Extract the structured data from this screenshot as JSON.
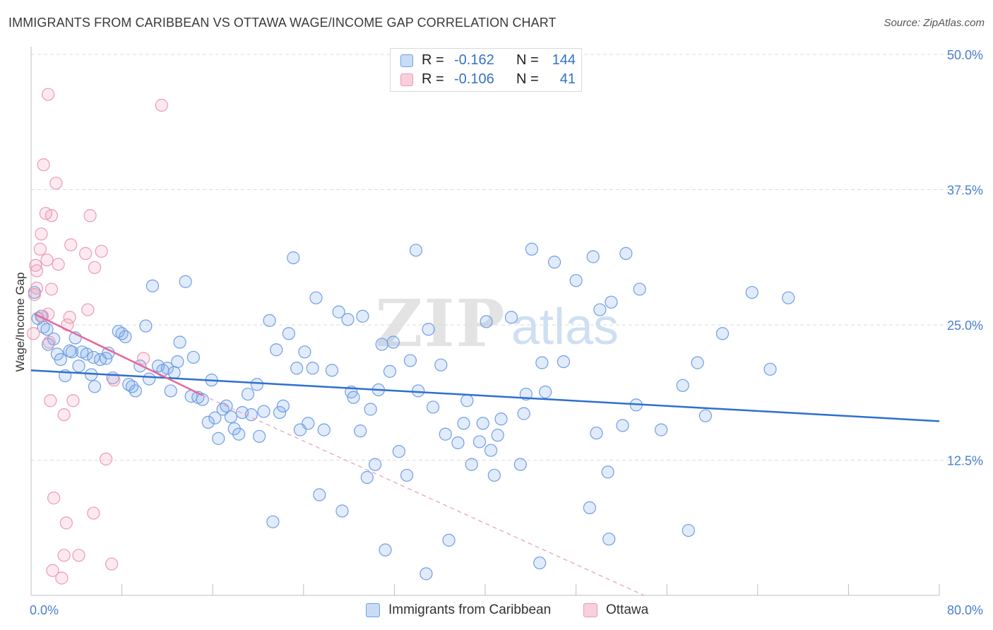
{
  "title": "IMMIGRANTS FROM CARIBBEAN VS OTTAWA WAGE/INCOME GAP CORRELATION CHART",
  "source": "Source: ZipAtlas.com",
  "watermark": {
    "zip": "ZIP",
    "atlas": "atlas"
  },
  "colors": {
    "blue_fill": "rgba(120,164,230,0.22)",
    "blue_stroke": "#6f9fe3",
    "blue_line": "#2e6fd0",
    "pink_fill": "rgba(240,150,180,0.20)",
    "pink_stroke": "#eb9ab5",
    "pink_line": "#e5689a",
    "grid": "#dcdcdc",
    "tick_text": "#4a7fcf"
  },
  "legend": {
    "rows": [
      {
        "r_label": "R =",
        "r_value": "-0.162",
        "n_label": "N =",
        "n_value": "144",
        "series": "blue"
      },
      {
        "r_label": "R =",
        "r_value": "-0.106",
        "n_label": "N =",
        "n_value": "41",
        "series": "pink"
      }
    ]
  },
  "bottom_legend": [
    {
      "label": "Immigrants from Caribbean",
      "series": "blue"
    },
    {
      "label": "Ottawa",
      "series": "pink"
    }
  ],
  "chart_data": {
    "type": "scatter",
    "title": "IMMIGRANTS FROM CARIBBEAN VS OTTAWA WAGE/INCOME GAP CORRELATION CHART",
    "xlabel": "",
    "ylabel": "Wage/Income Gap",
    "xlim": [
      0,
      80
    ],
    "ylim": [
      0,
      50
    ],
    "x_tick_labels": [
      {
        "value": 0,
        "label": "0.0%"
      },
      {
        "value": 80,
        "label": "80.0%"
      }
    ],
    "y_tick_labels": [
      {
        "value": 12.5,
        "label": "12.5%"
      },
      {
        "value": 25,
        "label": "25.0%"
      },
      {
        "value": 37.5,
        "label": "37.5%"
      },
      {
        "value": 50,
        "label": "50.0%"
      }
    ],
    "grid": true,
    "series": [
      {
        "name": "Immigrants from Caribbean",
        "color": "blue",
        "R": -0.162,
        "N": 144,
        "trend": {
          "x": [
            0,
            80
          ],
          "y": [
            20.8,
            16.1
          ]
        },
        "points": [
          [
            0.3,
            28.0
          ],
          [
            0.6,
            25.6
          ],
          [
            0.9,
            25.8
          ],
          [
            1.1,
            24.8
          ],
          [
            1.4,
            24.6
          ],
          [
            1.5,
            23.2
          ],
          [
            2.0,
            23.7
          ],
          [
            2.3,
            22.3
          ],
          [
            2.6,
            21.8
          ],
          [
            3.0,
            20.3
          ],
          [
            3.4,
            22.6
          ],
          [
            3.6,
            22.5
          ],
          [
            3.9,
            23.8
          ],
          [
            4.2,
            21.2
          ],
          [
            4.5,
            22.5
          ],
          [
            4.9,
            22.3
          ],
          [
            5.3,
            20.4
          ],
          [
            5.6,
            19.3
          ],
          [
            5.5,
            22.0
          ],
          [
            6.1,
            21.8
          ],
          [
            6.6,
            21.9
          ],
          [
            6.8,
            22.4
          ],
          [
            7.2,
            20.1
          ],
          [
            7.7,
            24.4
          ],
          [
            8.0,
            24.2
          ],
          [
            8.3,
            23.9
          ],
          [
            8.6,
            19.5
          ],
          [
            8.9,
            19.3
          ],
          [
            9.2,
            18.9
          ],
          [
            9.6,
            21.2
          ],
          [
            10.1,
            24.9
          ],
          [
            10.4,
            20.0
          ],
          [
            10.7,
            28.6
          ],
          [
            11.2,
            21.2
          ],
          [
            11.6,
            20.8
          ],
          [
            12.0,
            21.0
          ],
          [
            12.3,
            18.9
          ],
          [
            12.6,
            20.6
          ],
          [
            12.9,
            21.6
          ],
          [
            13.1,
            23.4
          ],
          [
            13.6,
            29.0
          ],
          [
            14.1,
            18.4
          ],
          [
            14.3,
            22.0
          ],
          [
            14.7,
            18.3
          ],
          [
            15.1,
            18.1
          ],
          [
            15.6,
            16.0
          ],
          [
            15.9,
            19.9
          ],
          [
            16.2,
            16.4
          ],
          [
            16.5,
            14.5
          ],
          [
            16.9,
            17.2
          ],
          [
            17.2,
            17.5
          ],
          [
            17.6,
            16.5
          ],
          [
            17.9,
            15.4
          ],
          [
            18.3,
            14.9
          ],
          [
            18.6,
            16.9
          ],
          [
            19.1,
            18.6
          ],
          [
            19.4,
            16.7
          ],
          [
            19.9,
            19.5
          ],
          [
            20.1,
            14.7
          ],
          [
            20.5,
            17.0
          ],
          [
            21.0,
            25.4
          ],
          [
            21.3,
            6.8
          ],
          [
            21.6,
            22.7
          ],
          [
            21.9,
            16.9
          ],
          [
            22.2,
            17.5
          ],
          [
            22.7,
            24.2
          ],
          [
            23.1,
            31.2
          ],
          [
            23.4,
            21.0
          ],
          [
            23.7,
            15.3
          ],
          [
            24.1,
            22.5
          ],
          [
            24.4,
            15.9
          ],
          [
            24.8,
            21.0
          ],
          [
            25.1,
            27.5
          ],
          [
            25.4,
            9.3
          ],
          [
            25.8,
            15.3
          ],
          [
            26.5,
            20.8
          ],
          [
            27.1,
            26.2
          ],
          [
            27.4,
            7.8
          ],
          [
            27.9,
            25.5
          ],
          [
            28.2,
            18.8
          ],
          [
            28.4,
            18.3
          ],
          [
            29.0,
            15.2
          ],
          [
            29.2,
            25.8
          ],
          [
            29.6,
            10.9
          ],
          [
            29.9,
            17.2
          ],
          [
            30.3,
            12.1
          ],
          [
            30.6,
            19.0
          ],
          [
            30.9,
            23.2
          ],
          [
            31.2,
            4.2
          ],
          [
            31.6,
            20.7
          ],
          [
            31.9,
            23.4
          ],
          [
            32.4,
            13.3
          ],
          [
            33.1,
            11.1
          ],
          [
            33.4,
            21.7
          ],
          [
            33.9,
            31.9
          ],
          [
            34.1,
            18.9
          ],
          [
            34.8,
            2.0
          ],
          [
            35.0,
            24.6
          ],
          [
            35.4,
            17.4
          ],
          [
            36.1,
            21.3
          ],
          [
            36.5,
            14.9
          ],
          [
            36.8,
            5.1
          ],
          [
            37.6,
            14.1
          ],
          [
            38.1,
            15.9
          ],
          [
            38.4,
            18.0
          ],
          [
            38.8,
            12.1
          ],
          [
            39.5,
            14.2
          ],
          [
            39.8,
            15.9
          ],
          [
            40.1,
            25.3
          ],
          [
            40.5,
            13.4
          ],
          [
            40.8,
            11.1
          ],
          [
            41.1,
            14.8
          ],
          [
            41.4,
            16.3
          ],
          [
            42.3,
            25.7
          ],
          [
            43.1,
            12.1
          ],
          [
            43.4,
            16.8
          ],
          [
            43.6,
            18.6
          ],
          [
            44.1,
            32.0
          ],
          [
            44.8,
            3.0
          ],
          [
            45.0,
            21.5
          ],
          [
            45.3,
            18.8
          ],
          [
            46.1,
            30.8
          ],
          [
            46.9,
            21.6
          ],
          [
            48.0,
            29.1
          ],
          [
            49.2,
            8.1
          ],
          [
            49.5,
            31.3
          ],
          [
            49.8,
            15.0
          ],
          [
            50.1,
            26.4
          ],
          [
            50.8,
            11.4
          ],
          [
            50.9,
            5.2
          ],
          [
            51.1,
            27.1
          ],
          [
            52.1,
            15.7
          ],
          [
            52.4,
            31.6
          ],
          [
            53.3,
            17.6
          ],
          [
            53.6,
            28.3
          ],
          [
            55.5,
            15.3
          ],
          [
            57.4,
            19.4
          ],
          [
            57.9,
            6.0
          ],
          [
            58.7,
            21.5
          ],
          [
            59.4,
            16.6
          ],
          [
            60.9,
            24.2
          ],
          [
            63.5,
            28.0
          ],
          [
            65.1,
            20.9
          ],
          [
            66.7,
            27.5
          ]
        ]
      },
      {
        "name": "Ottawa",
        "color": "pink",
        "R": -0.106,
        "N": 41,
        "trend": {
          "x": [
            0.3,
            15.1
          ],
          "y": [
            26.0,
            18.5
          ]
        },
        "trend_extended": {
          "x": [
            15.1,
            54
          ],
          "y": [
            18.5,
            0
          ]
        },
        "points": [
          [
            0.2,
            24.2
          ],
          [
            0.3,
            27.8
          ],
          [
            0.4,
            30.5
          ],
          [
            0.5,
            28.4
          ],
          [
            0.5,
            30.0
          ],
          [
            0.8,
            32.0
          ],
          [
            0.9,
            33.4
          ],
          [
            1.0,
            25.8
          ],
          [
            1.1,
            39.8
          ],
          [
            1.3,
            35.3
          ],
          [
            1.4,
            31.0
          ],
          [
            1.5,
            26.0
          ],
          [
            1.6,
            23.4
          ],
          [
            1.8,
            28.3
          ],
          [
            1.7,
            18.0
          ],
          [
            1.5,
            46.3
          ],
          [
            1.8,
            35.1
          ],
          [
            1.9,
            2.3
          ],
          [
            2.0,
            9.0
          ],
          [
            2.2,
            38.1
          ],
          [
            2.4,
            30.6
          ],
          [
            2.7,
            1.6
          ],
          [
            2.9,
            16.7
          ],
          [
            2.9,
            3.7
          ],
          [
            3.1,
            6.7
          ],
          [
            3.2,
            25.0
          ],
          [
            3.4,
            25.7
          ],
          [
            3.5,
            32.4
          ],
          [
            3.7,
            18.0
          ],
          [
            4.2,
            3.7
          ],
          [
            4.8,
            31.6
          ],
          [
            5.0,
            26.4
          ],
          [
            5.2,
            35.1
          ],
          [
            5.5,
            7.6
          ],
          [
            5.6,
            30.3
          ],
          [
            6.2,
            31.8
          ],
          [
            6.6,
            12.6
          ],
          [
            7.1,
            2.9
          ],
          [
            7.3,
            19.9
          ],
          [
            9.9,
            21.9
          ],
          [
            11.5,
            45.3
          ]
        ]
      }
    ]
  }
}
